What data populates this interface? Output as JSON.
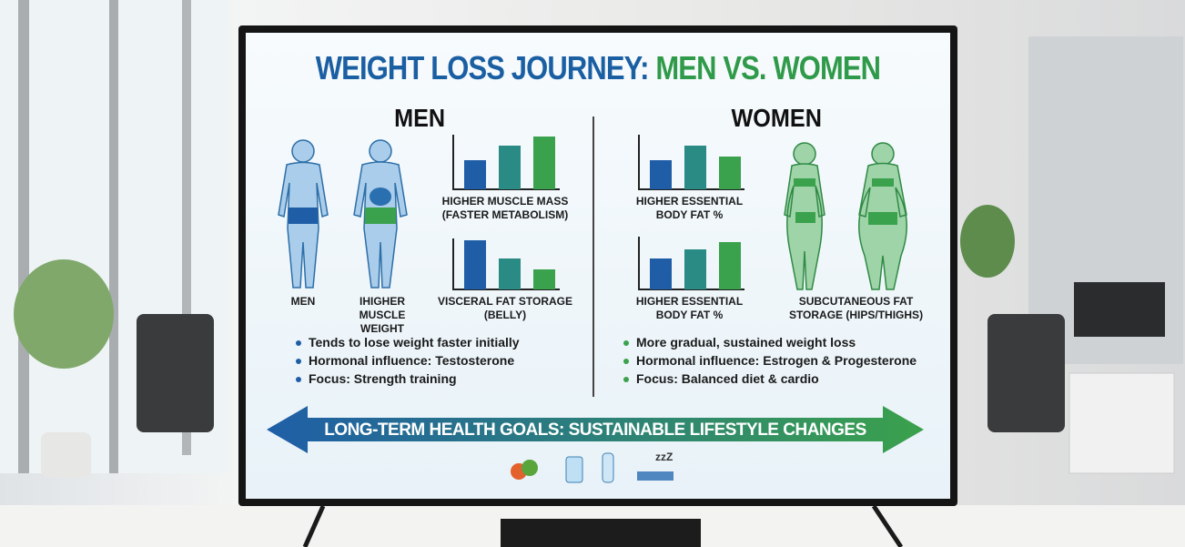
{
  "title": [
    "WEIGHT LOSS JOURNEY:",
    "MEN VS. WOMEN"
  ],
  "men": {
    "heading": "MEN",
    "figure_labels": [
      "MEN",
      "IHIGHER MUSCLE WEIGHT"
    ],
    "chart_captions": [
      "HIGHER MUSCLE MASS (FASTER METABOLISM)",
      "VISCERAL FAT STORAGE (BELLY)"
    ],
    "bullets": [
      "Tends to lose weight faster initially",
      "Hormonal influence: Testosterone",
      "Focus: Strength training"
    ]
  },
  "women": {
    "heading": "WOMEN",
    "chart_captions": [
      "HIGHER ESSENTIAL BODY FAT %",
      "HIGHER ESSENTIAL BODY FAT %"
    ],
    "figure_label": "SUBCUTANEOUS FAT STORAGE (HIPS/THIGHS)",
    "bullets": [
      "More gradual, sustained weight loss",
      "Hormonal influence: Estrogen & Progesterone",
      "Focus: Balanced diet & cardio"
    ]
  },
  "banner": "LONG-TERM HEALTH GOALS: SUSTAINABLE LIFESTYLE CHANGES"
}
